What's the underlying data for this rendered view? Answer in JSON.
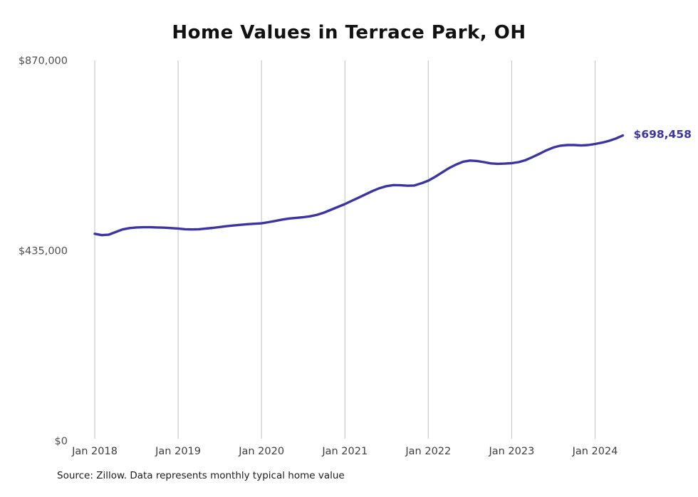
{
  "source_note": "Source: Zillow. Data represents monthly typical home value",
  "colors": {
    "line": "#3B35A3",
    "grid": "#cacaca",
    "axis_text": "#4f4f4f",
    "title_text": "#111111",
    "source_text": "#1b1b1b",
    "background": "#ffffff"
  },
  "chart_data": {
    "type": "line",
    "title": "Home Values in Terrace Park, OH",
    "xlabel": "",
    "ylabel": "",
    "x_start": "Jan 2018",
    "x_end": "May 2024",
    "x_tick_labels": [
      "Jan 2018",
      "Jan 2019",
      "Jan 2020",
      "Jan 2021",
      "Jan 2022",
      "Jan 2023",
      "Jan 2024"
    ],
    "y_tick_labels": [
      "$0",
      "$435,000",
      "$870,000"
    ],
    "y_tick_values": [
      0,
      435000,
      870000
    ],
    "ylim": [
      0,
      870000
    ],
    "grid": "vertical-only",
    "legend": "none",
    "last_value": 698458,
    "last_value_label": "$698,458",
    "series": [
      {
        "name": "Monthly typical home value",
        "frequency": "monthly",
        "values": [
          473500,
          470500,
          471500,
          477500,
          483500,
          486500,
          488000,
          488500,
          488500,
          488000,
          487500,
          486500,
          485500,
          484000,
          483500,
          484000,
          485500,
          487000,
          489000,
          491000,
          492500,
          494000,
          495500,
          496500,
          497500,
          500000,
          503000,
          506000,
          508500,
          510000,
          511500,
          513500,
          517000,
          522000,
          528500,
          535000,
          541500,
          549000,
          556500,
          564000,
          571500,
          578000,
          582500,
          585000,
          584500,
          583500,
          584000,
          589000,
          595000,
          604000,
          614000,
          624000,
          632000,
          638500,
          641000,
          640000,
          637500,
          634500,
          633500,
          634000,
          635000,
          637500,
          642000,
          649000,
          656500,
          664500,
          671000,
          675000,
          676500,
          676500,
          675500,
          676500,
          679000,
          682000,
          686000,
          691500,
          698458
        ]
      }
    ]
  }
}
